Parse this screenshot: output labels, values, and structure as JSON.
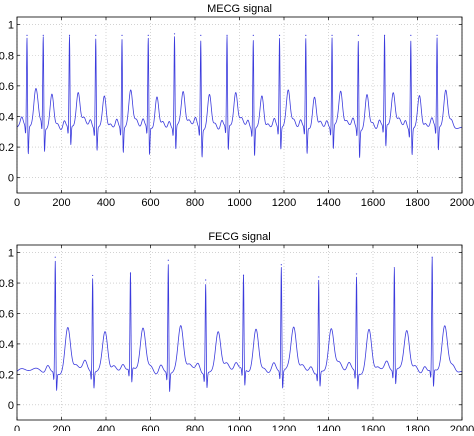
{
  "chart_data": [
    {
      "type": "line",
      "title": "MECG signal",
      "xlim": [
        0,
        2000
      ],
      "ylim": [
        -0.1,
        1.05
      ],
      "xticks": [
        0,
        200,
        400,
        600,
        800,
        1000,
        1200,
        1400,
        1600,
        1800,
        2000
      ],
      "yticks": [
        0,
        0.2,
        0.4,
        0.6,
        0.8,
        1
      ],
      "grid": true,
      "line_color": "#3b3bdd",
      "beat_period": 118,
      "r_peaks": [
        45,
        118,
        236,
        354,
        472,
        590,
        708,
        826,
        944,
        1062,
        1180,
        1298,
        1416,
        1534,
        1652,
        1770,
        1888
      ],
      "r_peak_values": [
        0.93,
        0.93,
        0.93,
        0.93,
        0.93,
        0.93,
        0.94,
        0.93,
        0.93,
        0.93,
        0.93,
        0.93,
        0.93,
        0.93,
        0.93,
        0.93,
        0.93
      ],
      "s_trough_values": [
        0.12,
        0.15,
        0.18,
        0.15,
        0.14,
        0.12,
        0.15,
        0.12,
        0.14,
        0.12,
        0.16,
        0.13,
        0.15,
        0.12,
        0.16,
        0.13,
        0.15
      ],
      "t_wave_peak": 0.55,
      "baseline": 0.33
    },
    {
      "type": "line",
      "title": "FECG signal",
      "xlim": [
        0,
        2000
      ],
      "ylim": [
        -0.1,
        1.05
      ],
      "xticks": [
        0,
        200,
        400,
        600,
        800,
        1000,
        1200,
        1400,
        1600,
        1800,
        2000
      ],
      "yticks": [
        0,
        0.2,
        0.4,
        0.6,
        0.8,
        1
      ],
      "grid": true,
      "line_color": "#3b3bdd",
      "beat_period": 170,
      "r_peaks": [
        172,
        340,
        510,
        680,
        848,
        1018,
        1188,
        1356,
        1526,
        1696,
        1866
      ],
      "r_peak_values": [
        0.97,
        0.85,
        0.86,
        0.95,
        0.82,
        0.85,
        0.92,
        0.84,
        0.86,
        0.9,
        0.97
      ],
      "s_trough_values": [
        0.08,
        0.09,
        0.1,
        0.07,
        0.1,
        0.09,
        0.08,
        0.1,
        0.09,
        0.1,
        0.08
      ],
      "t_wave_peak": 0.5,
      "baseline": 0.22
    }
  ]
}
